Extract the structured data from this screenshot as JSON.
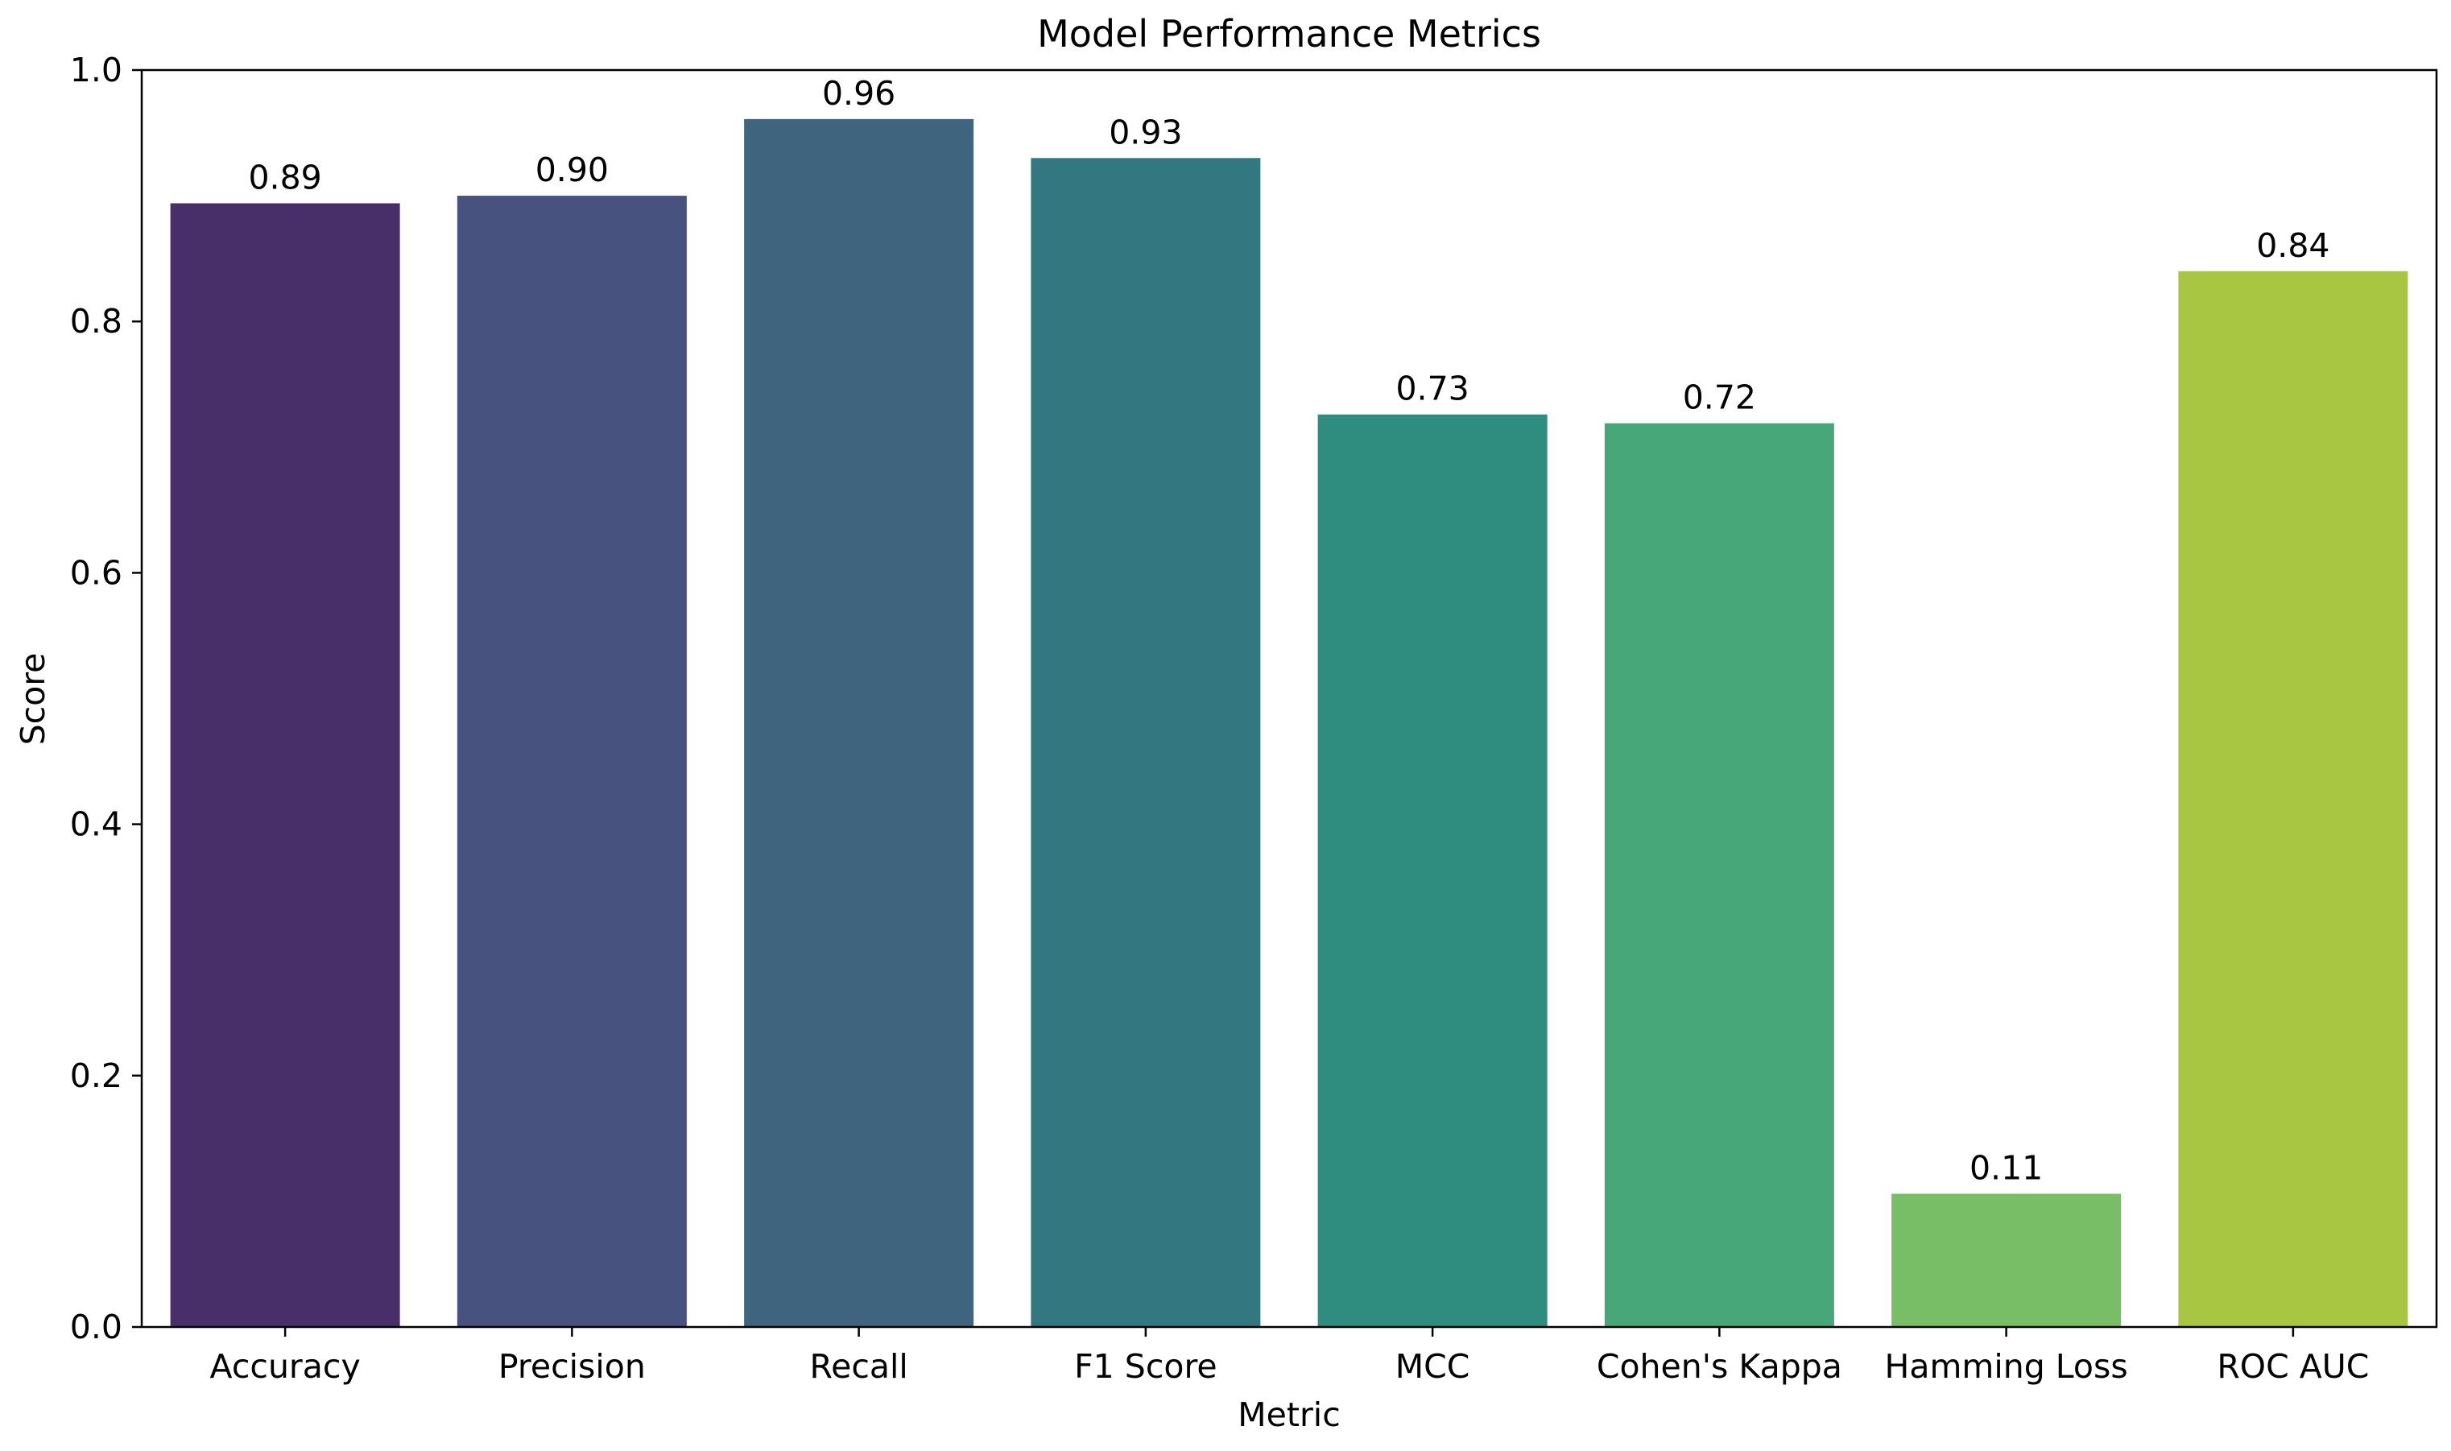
{
  "chart_data": {
    "type": "bar",
    "title": "Model Performance Metrics",
    "xlabel": "Metric",
    "ylabel": "Score",
    "categories": [
      "Accuracy",
      "Precision",
      "Recall",
      "F1 Score",
      "MCC",
      "Cohen's Kappa",
      "Hamming Loss",
      "ROC AUC"
    ],
    "values": [
      0.894,
      0.9,
      0.961,
      0.93,
      0.726,
      0.719,
      0.106,
      0.84
    ],
    "value_labels": [
      "0.89",
      "0.90",
      "0.96",
      "0.93",
      "0.73",
      "0.72",
      "0.11",
      "0.84"
    ],
    "colors": [
      "#482f6a",
      "#47527e",
      "#3e647e",
      "#337780",
      "#2e8d7e",
      "#47a778",
      "#77be66",
      "#a8c641"
    ],
    "ylim": [
      0.0,
      1.0
    ],
    "yticks": [
      "0.0",
      "0.2",
      "0.4",
      "0.6",
      "0.8",
      "1.0"
    ],
    "grid": false,
    "legend": "none"
  }
}
